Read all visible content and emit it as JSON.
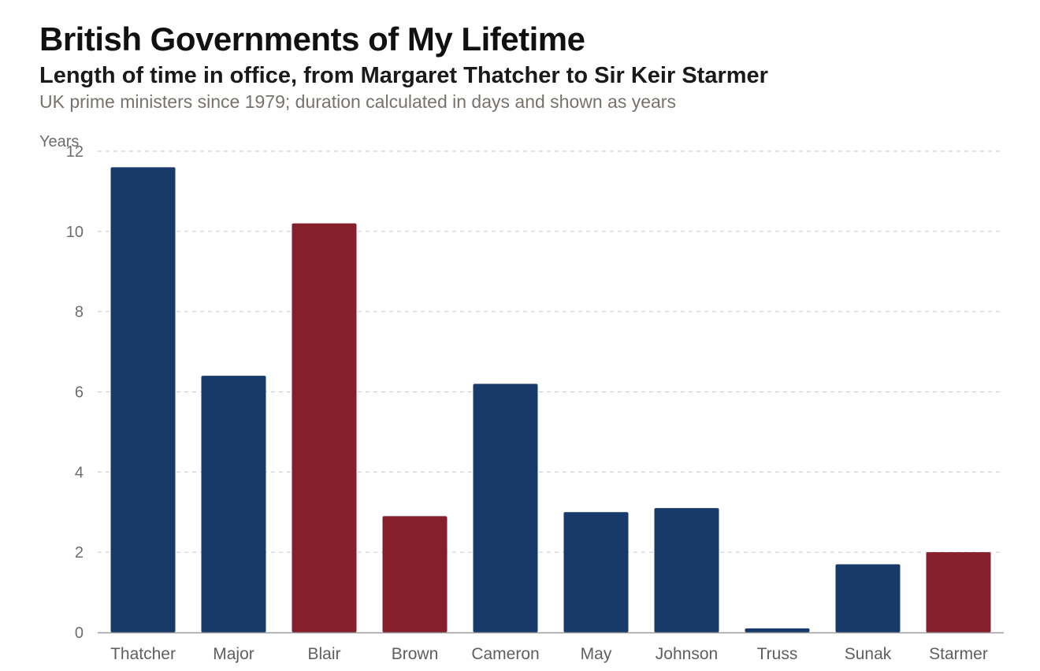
{
  "chart_data": {
    "type": "bar",
    "title": "British Governments of My Lifetime",
    "subtitle": "Length of time in office, from Margaret Thatcher to Sir Keir Starmer",
    "caption": "UK prime ministers since 1979; duration calculated in days and shown as years",
    "ylabel": "Years",
    "xlabel": "",
    "ylim": [
      0,
      12
    ],
    "yticks": [
      0,
      2,
      4,
      6,
      8,
      10,
      12
    ],
    "grid": true,
    "categories": [
      "Thatcher",
      "Major",
      "Blair",
      "Brown",
      "Cameron",
      "May",
      "Johnson",
      "Truss",
      "Sunak",
      "Starmer"
    ],
    "values": [
      11.6,
      6.4,
      10.2,
      2.9,
      6.2,
      3.0,
      3.1,
      0.1,
      1.7,
      2.0
    ],
    "bar_colors": [
      "#173a6b",
      "#173a6b",
      "#851f2c",
      "#851f2c",
      "#173a6b",
      "#173a6b",
      "#173a6b",
      "#173a6b",
      "#173a6b",
      "#851f2c"
    ]
  }
}
